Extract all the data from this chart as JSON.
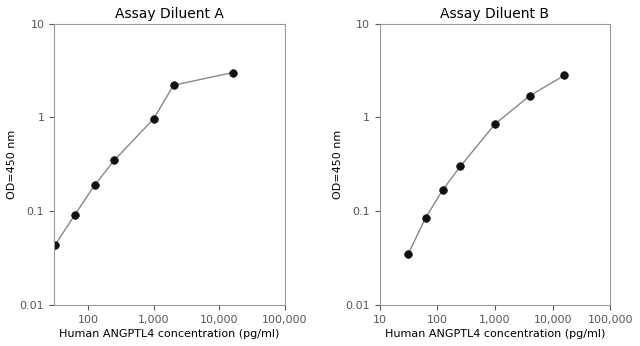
{
  "panel_a_title": "Assay Diluent A",
  "panel_b_title": "Assay Diluent B",
  "panel_a_x": [
    31.25,
    62.5,
    125,
    250,
    1000,
    2000,
    16000
  ],
  "panel_a_y": [
    0.044,
    0.092,
    0.19,
    0.35,
    0.97,
    2.2,
    3.0
  ],
  "panel_b_x": [
    31.25,
    62.5,
    125,
    250,
    1000,
    4000,
    16000
  ],
  "panel_b_y": [
    0.035,
    0.085,
    0.17,
    0.3,
    0.85,
    1.7,
    2.8
  ],
  "xlabel": "Human ANGPTL4 concentration (pg/ml)",
  "ylabel": "OD=450 nm",
  "panel_a_xlim": [
    30,
    100000
  ],
  "panel_b_xlim": [
    10,
    100000
  ],
  "ylim": [
    0.01,
    10
  ],
  "line_color": "#888888",
  "marker_color": "#111111",
  "marker_size": 5.5,
  "title_fontsize": 10,
  "label_fontsize": 8,
  "tick_fontsize": 8,
  "tick_color_x_a": "#4472c4",
  "tick_color_x_b": "#000000",
  "tick_color_y": "#4472c4",
  "spine_color": "#999999"
}
